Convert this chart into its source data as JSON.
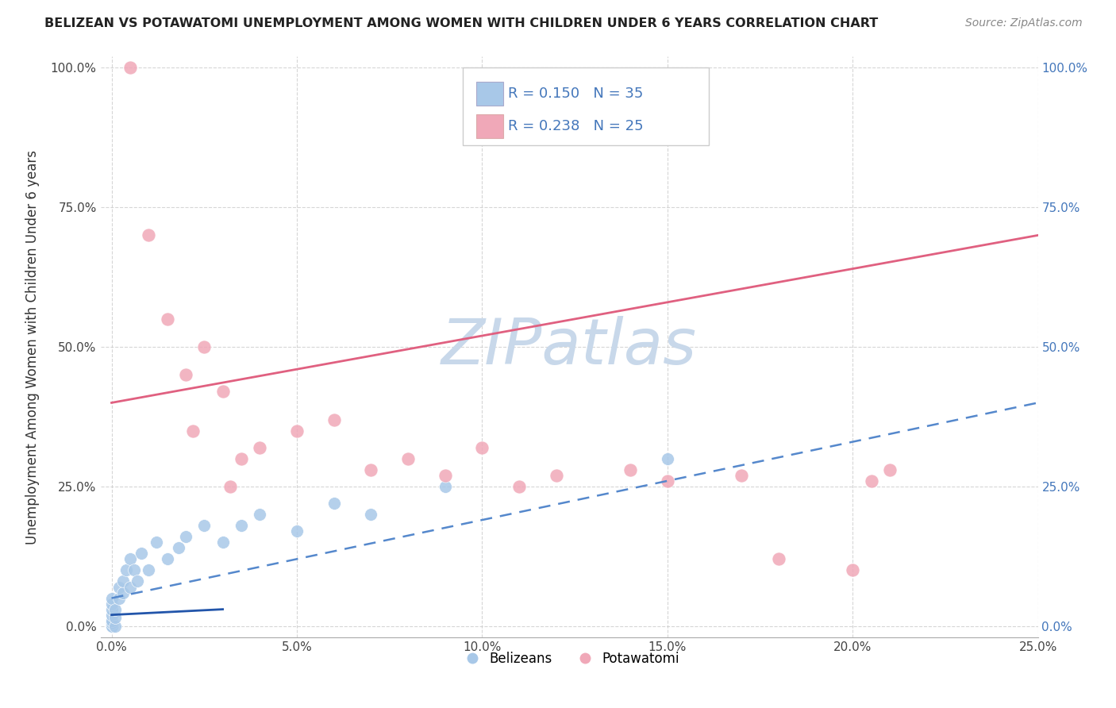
{
  "title": "BELIZEAN VS POTAWATOMI UNEMPLOYMENT AMONG WOMEN WITH CHILDREN UNDER 6 YEARS CORRELATION CHART",
  "source": "Source: ZipAtlas.com",
  "ylabel": "Unemployment Among Women with Children Under 6 years",
  "x_tick_values": [
    0,
    5,
    10,
    15,
    20,
    25
  ],
  "y_tick_values": [
    0,
    25,
    50,
    75,
    100
  ],
  "xlim": [
    -0.3,
    25
  ],
  "ylim": [
    -2,
    102
  ],
  "belizean_R": 0.15,
  "belizean_N": 35,
  "potawatomi_R": 0.238,
  "potawatomi_N": 25,
  "belizean_color": "#a8c8e8",
  "belizean_line_color": "#5588cc",
  "belizean_line_solid_color": "#2255aa",
  "potawatomi_color": "#f0a8b8",
  "potawatomi_line_color": "#e06080",
  "watermark_color": "#c8d8ea",
  "legend_box_belizean": "#a8c8e8",
  "legend_box_potawatomi": "#f0a8b8",
  "legend_text_color": "#4477bb",
  "belizean_x": [
    0.0,
    0.0,
    0.0,
    0.0,
    0.0,
    0.0,
    0.0,
    0.0,
    0.1,
    0.1,
    0.1,
    0.2,
    0.2,
    0.3,
    0.3,
    0.4,
    0.5,
    0.5,
    0.6,
    0.7,
    0.8,
    1.0,
    1.2,
    1.5,
    1.8,
    2.0,
    2.5,
    3.0,
    3.5,
    4.0,
    5.0,
    6.0,
    7.0,
    9.0,
    15.0
  ],
  "belizean_y": [
    0.0,
    0.0,
    0.5,
    1.0,
    2.0,
    3.0,
    4.0,
    5.0,
    0.0,
    1.5,
    3.0,
    5.0,
    7.0,
    6.0,
    8.0,
    10.0,
    7.0,
    12.0,
    10.0,
    8.0,
    13.0,
    10.0,
    15.0,
    12.0,
    14.0,
    16.0,
    18.0,
    15.0,
    18.0,
    20.0,
    17.0,
    22.0,
    20.0,
    25.0,
    30.0
  ],
  "potawatomi_x": [
    0.5,
    1.0,
    1.5,
    2.0,
    2.2,
    2.5,
    3.0,
    3.2,
    3.5,
    4.0,
    5.0,
    6.0,
    7.0,
    8.0,
    9.0,
    10.0,
    11.0,
    12.0,
    14.0,
    15.0,
    17.0,
    18.0,
    20.0,
    20.5,
    21.0
  ],
  "potawatomi_y": [
    100.0,
    70.0,
    55.0,
    45.0,
    35.0,
    50.0,
    42.0,
    25.0,
    30.0,
    32.0,
    35.0,
    37.0,
    28.0,
    30.0,
    27.0,
    32.0,
    25.0,
    27.0,
    28.0,
    26.0,
    27.0,
    12.0,
    10.0,
    26.0,
    28.0
  ],
  "pink_line_x0": 0,
  "pink_line_y0": 40,
  "pink_line_x1": 25,
  "pink_line_y1": 70,
  "blue_dash_x0": 0,
  "blue_dash_y0": 5,
  "blue_dash_x1": 25,
  "blue_dash_y1": 40,
  "blue_solid_x0": 0,
  "blue_solid_y0": 2,
  "blue_solid_x1": 3,
  "blue_solid_y1": 3
}
